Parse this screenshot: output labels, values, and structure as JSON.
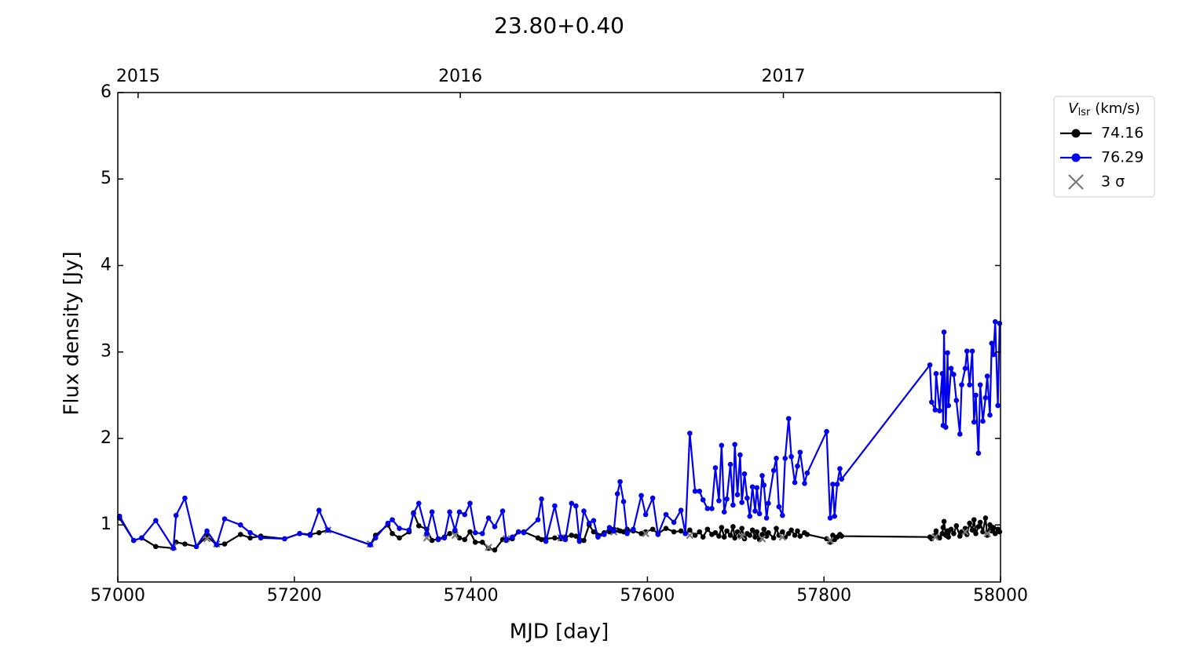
{
  "chart_data": {
    "type": "line",
    "title": "23.80+0.40",
    "xlabel": "MJD [day]",
    "ylabel": "Flux density [Jy]",
    "xlim": [
      57000,
      58000
    ],
    "xticks": [
      57000,
      57200,
      57400,
      57600,
      57800,
      58000
    ],
    "top_xticks": [
      {
        "value": 57023,
        "label": "2015"
      },
      {
        "value": 57388,
        "label": "2016"
      },
      {
        "value": 57754,
        "label": "2017"
      }
    ],
    "ylim": [
      0.34,
      6
    ],
    "yticks": [
      1,
      2,
      3,
      4,
      5,
      6
    ],
    "legend": {
      "position": "outside right",
      "title": {
        "symbol": "V",
        "subscript": "lsr",
        "unit": "(km/s)"
      }
    },
    "x": [
      57002,
      57018,
      57027,
      57043,
      57063,
      57066,
      57076,
      57089,
      57101,
      57112,
      57121,
      57139,
      57150,
      57162,
      57189,
      57206,
      57218,
      57228,
      57238,
      57286,
      57292,
      57306,
      57311,
      57319,
      57330,
      57335,
      57341,
      57350,
      57356,
      57363,
      57370,
      57376,
      57382,
      57387,
      57393,
      57399,
      57405,
      57413,
      57420,
      57427,
      57436,
      57440,
      57447,
      57454,
      57460,
      57476,
      57480,
      57485,
      57495,
      57502,
      57507,
      57514,
      57519,
      57523,
      57528,
      57534,
      57539,
      57544,
      57551,
      57557,
      57562,
      57566,
      57569,
      57573,
      57577,
      57584,
      57593,
      57598,
      57606,
      57612,
      57621,
      57630,
      57638,
      57643,
      57648,
      57654,
      57659,
      57663,
      57668,
      57673,
      57677,
      57681,
      57684,
      57687,
      57690,
      57694,
      57697,
      57699,
      57702,
      57705,
      57707,
      57710,
      57713,
      57716,
      57719,
      57722,
      57724,
      57727,
      57730,
      57732,
      57735,
      57737,
      57743,
      57746,
      57749,
      57753,
      57756,
      57760,
      57763,
      57767,
      57770,
      57773,
      57778,
      57781,
      57803,
      57807,
      57810,
      57812,
      57815,
      57818,
      57820,
      57920,
      57922,
      57926,
      57927,
      57931,
      57934,
      57935,
      57936,
      57938,
      57940,
      57941,
      57944,
      57947,
      57950,
      57954,
      57956,
      57960,
      57962,
      57965,
      57968,
      57970,
      57972,
      57975,
      57977,
      57980,
      57983,
      57985,
      57988,
      57990,
      57992,
      57994,
      57997,
      57999
    ],
    "series": [
      {
        "name": "74.16",
        "color": "#000000",
        "marker": "o",
        "values": [
          1.08,
          0.82,
          0.85,
          0.75,
          0.73,
          0.8,
          0.78,
          0.75,
          0.87,
          0.77,
          0.78,
          0.89,
          0.85,
          0.87,
          0.84,
          0.9,
          0.89,
          0.91,
          0.94,
          0.77,
          0.88,
          1.0,
          0.9,
          0.85,
          0.92,
          1.14,
          0.99,
          0.95,
          0.82,
          0.84,
          0.86,
          0.9,
          0.93,
          0.85,
          0.83,
          0.92,
          0.8,
          0.8,
          0.73,
          0.71,
          0.83,
          0.82,
          0.84,
          0.92,
          0.92,
          0.85,
          0.83,
          0.84,
          0.85,
          0.84,
          0.86,
          0.88,
          0.87,
          0.83,
          0.82,
          1.0,
          0.92,
          0.88,
          0.91,
          0.92,
          0.95,
          0.94,
          0.93,
          0.92,
          0.95,
          0.93,
          0.9,
          0.92,
          0.95,
          0.9,
          0.96,
          0.92,
          0.93,
          0.9,
          0.94,
          0.88,
          0.92,
          0.86,
          0.95,
          0.89,
          0.91,
          0.87,
          0.97,
          0.86,
          0.93,
          0.88,
          0.98,
          0.85,
          0.92,
          0.87,
          0.96,
          0.84,
          0.9,
          0.88,
          0.94,
          0.86,
          0.92,
          0.83,
          0.89,
          0.95,
          0.87,
          0.91,
          0.85,
          0.96,
          0.88,
          0.92,
          0.86,
          0.9,
          0.94,
          0.88,
          0.93,
          0.87,
          0.91,
          0.89,
          0.84,
          0.8,
          0.88,
          0.83,
          0.86,
          0.89,
          0.87,
          0.86,
          0.84,
          0.88,
          0.93,
          0.85,
          0.9,
          0.97,
          1.04,
          0.88,
          0.93,
          0.86,
          0.95,
          0.9,
          0.99,
          0.87,
          0.92,
          0.96,
          0.89,
          1.02,
          0.94,
          1.06,
          0.9,
          0.98,
          1.03,
          0.92,
          1.08,
          0.88,
          1.0,
          0.93,
          0.97,
          0.9,
          0.95,
          0.92
        ]
      },
      {
        "name": "3 σ",
        "color": "#777777",
        "marker": "x",
        "x": [
          57063,
          57101,
          57112,
          57238,
          57286,
          57350,
          57382,
          57420,
          57440,
          57502,
          57562,
          57598,
          57648,
          57707,
          57730,
          57753,
          57807,
          57926,
          57960,
          57985
        ],
        "values": [
          0.75,
          0.84,
          0.78,
          0.94,
          0.78,
          0.85,
          0.88,
          0.74,
          0.84,
          0.85,
          0.92,
          0.9,
          0.88,
          0.87,
          0.84,
          0.86,
          0.82,
          0.86,
          0.92,
          0.9
        ]
      },
      {
        "name": "76.29",
        "color": "#0000ee",
        "marker": "o",
        "values": [
          1.1,
          0.82,
          0.85,
          1.05,
          0.73,
          1.11,
          1.31,
          0.75,
          0.93,
          0.77,
          1.07,
          1.0,
          0.91,
          0.85,
          0.84,
          0.9,
          0.88,
          1.17,
          0.94,
          0.77,
          0.85,
          1.02,
          1.06,
          0.96,
          0.94,
          1.13,
          1.25,
          0.9,
          1.15,
          0.83,
          0.85,
          1.15,
          0.94,
          1.15,
          1.12,
          1.25,
          0.91,
          0.9,
          1.08,
          0.98,
          1.16,
          0.83,
          0.86,
          0.92,
          0.91,
          1.06,
          1.3,
          0.81,
          1.22,
          0.86,
          0.83,
          1.25,
          1.22,
          0.81,
          1.16,
          1.02,
          1.05,
          0.86,
          0.89,
          0.97,
          0.93,
          1.36,
          1.5,
          1.27,
          0.9,
          0.95,
          1.34,
          1.12,
          1.31,
          0.89,
          1.12,
          1.03,
          1.17,
          0.9,
          2.06,
          1.39,
          1.39,
          1.29,
          1.19,
          1.19,
          1.66,
          1.28,
          1.92,
          1.15,
          1.3,
          1.7,
          1.23,
          1.93,
          1.35,
          1.81,
          1.26,
          1.59,
          1.31,
          1.1,
          1.44,
          1.16,
          1.43,
          1.13,
          1.57,
          1.46,
          1.08,
          1.25,
          1.63,
          1.77,
          1.21,
          1.11,
          1.77,
          2.23,
          1.79,
          1.49,
          1.68,
          1.84,
          1.48,
          1.6,
          2.08,
          1.08,
          1.47,
          1.1,
          1.47,
          1.65,
          1.53,
          2.85,
          2.42,
          2.33,
          2.75,
          2.32,
          2.75,
          2.15,
          3.23,
          2.13,
          2.99,
          2.38,
          2.81,
          2.74,
          2.44,
          2.05,
          2.62,
          2.81,
          3.01,
          2.62,
          3.01,
          2.19,
          2.5,
          1.83,
          2.62,
          2.2,
          2.47,
          2.72,
          2.27,
          3.1,
          2.97,
          3.35,
          2.38,
          3.33
        ]
      }
    ]
  }
}
